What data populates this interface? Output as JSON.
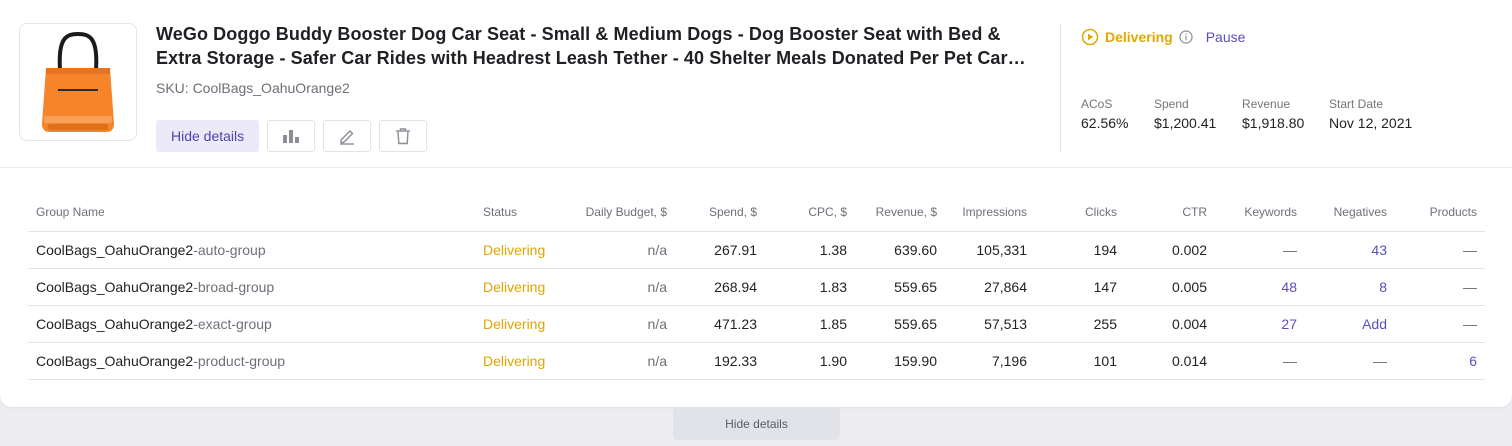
{
  "product": {
    "title_line1": "WeGo Doggo Buddy Booster Dog Car Seat - Small & Medium Dogs - Dog Booster Seat with Bed &",
    "title_line2": "Extra Storage - Safer Car Rides with Headrest Leash Tether - 40 Shelter Meals Donated Per Pet Car…",
    "sku": "SKU: CoolBags_OahuOrange2",
    "image_icon": "orange-tote-bag-image"
  },
  "actions": {
    "hide_details_label": "Hide details",
    "icons": [
      "bar-chart-icon",
      "edit-pencil-icon",
      "trash-icon"
    ]
  },
  "status": {
    "label": "Delivering",
    "pause_label": "Pause",
    "color": "#e0a800"
  },
  "metrics": [
    {
      "label": "ACoS",
      "value": "62.56%"
    },
    {
      "label": "Spend",
      "value": "$1,200.41"
    },
    {
      "label": "Revenue",
      "value": "$1,918.80"
    },
    {
      "label": "Start Date",
      "value": "Nov 12, 2021"
    }
  ],
  "table": {
    "headers": [
      "Group Name",
      "Status",
      "Daily Budget, $",
      "Spend, $",
      "CPC, $",
      "Revenue, $",
      "Impressions",
      "Clicks",
      "CTR",
      "Keywords",
      "Negatives",
      "Products"
    ],
    "rows": [
      {
        "group_prefix": "CoolBags_OahuOrange2",
        "group_suffix": "-auto-group",
        "status": "Delivering",
        "daily_budget": "n/a",
        "spend": "267.91",
        "cpc": "1.38",
        "revenue": "639.60",
        "impressions": "105,331",
        "clicks": "194",
        "ctr": "0.002",
        "keywords": "—",
        "negatives": "43",
        "products": "—"
      },
      {
        "group_prefix": "CoolBags_OahuOrange2",
        "group_suffix": "-broad-group",
        "status": "Delivering",
        "daily_budget": "n/a",
        "spend": "268.94",
        "cpc": "1.83",
        "revenue": "559.65",
        "impressions": "27,864",
        "clicks": "147",
        "ctr": "0.005",
        "keywords": "48",
        "negatives": "8",
        "products": "—"
      },
      {
        "group_prefix": "CoolBags_OahuOrange2",
        "group_suffix": "-exact-group",
        "status": "Delivering",
        "daily_budget": "n/a",
        "spend": "471.23",
        "cpc": "1.85",
        "revenue": "559.65",
        "impressions": "57,513",
        "clicks": "255",
        "ctr": "0.004",
        "keywords": "27",
        "negatives": "Add",
        "products": "—"
      },
      {
        "group_prefix": "CoolBags_OahuOrange2",
        "group_suffix": "-product-group",
        "status": "Delivering",
        "daily_budget": "n/a",
        "spend": "192.33",
        "cpc": "1.90",
        "revenue": "159.90",
        "impressions": "7,196",
        "clicks": "101",
        "ctr": "0.014",
        "keywords": "—",
        "negatives": "—",
        "products": "6"
      }
    ]
  },
  "footer": {
    "hide_details_label": "Hide details"
  },
  "colors": {
    "accent": "#5a50bd",
    "delivering": "#e0a800"
  }
}
